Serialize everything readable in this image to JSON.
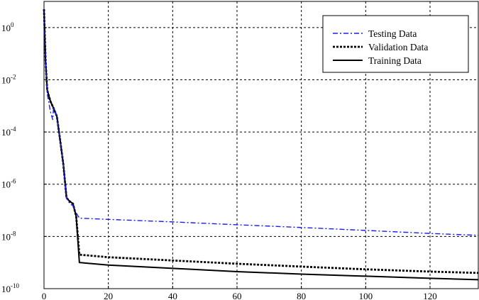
{
  "chart_data": {
    "type": "line",
    "title": "",
    "xlabel": "",
    "ylabel": "",
    "xlim": [
      0,
      135
    ],
    "ylim": [
      1e-10,
      10
    ],
    "y_scale": "log",
    "grid": true,
    "grid_style": "dashed",
    "legend_position": "top-right",
    "x_ticks": [
      "0",
      "20",
      "40",
      "60",
      "80",
      "100",
      "120"
    ],
    "y_ticks": [
      {
        "base": "10",
        "exp": "0",
        "value": 1
      },
      {
        "base": "10",
        "exp": "-2",
        "value": 0.01
      },
      {
        "base": "10",
        "exp": "-4",
        "value": 0.0001
      },
      {
        "base": "10",
        "exp": "-6",
        "value": 1e-06
      },
      {
        "base": "10",
        "exp": "-8",
        "value": 1e-08
      },
      {
        "base": "10",
        "exp": "-10",
        "value": 1e-10
      }
    ],
    "series": [
      {
        "name": "Testing Data",
        "color": "#1a1aff",
        "style": "dashdot",
        "points": [
          [
            0,
            5
          ],
          [
            0.5,
            0.05
          ],
          [
            1,
            0.003
          ],
          [
            2,
            0.0006
          ],
          [
            2.7,
            0.0003
          ],
          [
            3,
            0.0009
          ],
          [
            4,
            0.0004
          ],
          [
            5,
            5e-05
          ],
          [
            6,
            6e-06
          ],
          [
            7,
            3e-07
          ],
          [
            8,
            1.8e-07
          ],
          [
            9,
            1.5e-07
          ],
          [
            10,
            8e-08
          ],
          [
            11,
            5e-08
          ],
          [
            20,
            4.5e-08
          ],
          [
            40,
            3.6e-08
          ],
          [
            60,
            2.8e-08
          ],
          [
            80,
            2.2e-08
          ],
          [
            100,
            1.7e-08
          ],
          [
            120,
            1.3e-08
          ],
          [
            135,
            1.1e-08
          ]
        ]
      },
      {
        "name": "Validation Data",
        "color": "#000000",
        "style": "dotted",
        "points": [
          [
            0,
            5
          ],
          [
            0.5,
            0.05
          ],
          [
            1,
            0.004
          ],
          [
            2,
            0.0015
          ],
          [
            3,
            0.0008
          ],
          [
            4,
            0.0004
          ],
          [
            5,
            5e-05
          ],
          [
            6,
            6e-06
          ],
          [
            7,
            3e-07
          ],
          [
            8,
            2.2e-07
          ],
          [
            9,
            1.8e-07
          ],
          [
            10,
            6e-08
          ],
          [
            11,
            2e-09
          ],
          [
            20,
            1.6e-09
          ],
          [
            40,
            1.2e-09
          ],
          [
            60,
            9e-10
          ],
          [
            80,
            7e-10
          ],
          [
            100,
            5.5e-10
          ],
          [
            120,
            4.5e-10
          ],
          [
            135,
            4e-10
          ]
        ]
      },
      {
        "name": "Training Data",
        "color": "#000000",
        "style": "solid",
        "points": [
          [
            0,
            5
          ],
          [
            0.5,
            0.05
          ],
          [
            1,
            0.004
          ],
          [
            2,
            0.0015
          ],
          [
            3,
            0.0008
          ],
          [
            4,
            0.0004
          ],
          [
            5,
            5e-05
          ],
          [
            6,
            6e-06
          ],
          [
            7,
            3e-07
          ],
          [
            8,
            2.2e-07
          ],
          [
            9,
            1.8e-07
          ],
          [
            10,
            6e-08
          ],
          [
            11,
            1e-09
          ],
          [
            20,
            8e-10
          ],
          [
            40,
            6e-10
          ],
          [
            60,
            4.5e-10
          ],
          [
            80,
            3.6e-10
          ],
          [
            100,
            3e-10
          ],
          [
            120,
            2.5e-10
          ],
          [
            135,
            2.2e-10
          ]
        ]
      }
    ]
  }
}
